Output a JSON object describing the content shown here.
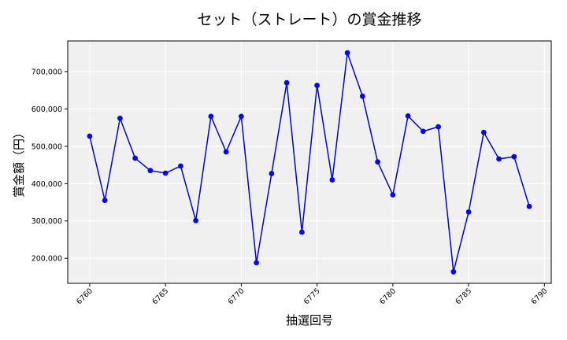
{
  "chart_data": {
    "type": "line",
    "title": "セット（ストレート）の賞金推移",
    "xlabel": "抽選回号",
    "ylabel": "賞金額（円）",
    "xlim": [
      6758.55,
      6790.45
    ],
    "ylim": [
      133000,
      782000
    ],
    "x_ticks": [
      6760,
      6765,
      6770,
      6775,
      6780,
      6785,
      6790
    ],
    "y_ticks": [
      200000,
      300000,
      400000,
      500000,
      600000,
      700000
    ],
    "y_tick_labels": [
      "200,000",
      "300,000",
      "400,000",
      "500,000",
      "600,000",
      "700,000"
    ],
    "grid": true,
    "colors": {
      "line": "#0000cc",
      "marker": "#0000ff",
      "plot_bg": "#f0f0f0",
      "grid": "#ffffff"
    },
    "x": [
      6760,
      6761,
      6762,
      6763,
      6764,
      6765,
      6766,
      6767,
      6768,
      6769,
      6770,
      6771,
      6772,
      6773,
      6774,
      6775,
      6776,
      6777,
      6778,
      6779,
      6780,
      6781,
      6782,
      6783,
      6784,
      6785,
      6786,
      6787,
      6788,
      6789
    ],
    "series": [
      {
        "values": [
          527000,
          355000,
          575000,
          468000,
          435000,
          428000,
          447000,
          301000,
          580000,
          485000,
          580000,
          188000,
          427000,
          670000,
          270000,
          663000,
          410000,
          750000,
          634000,
          458000,
          370000,
          581000,
          540000,
          552000,
          164000,
          324000,
          537000,
          466000,
          472000,
          339000
        ]
      }
    ]
  }
}
